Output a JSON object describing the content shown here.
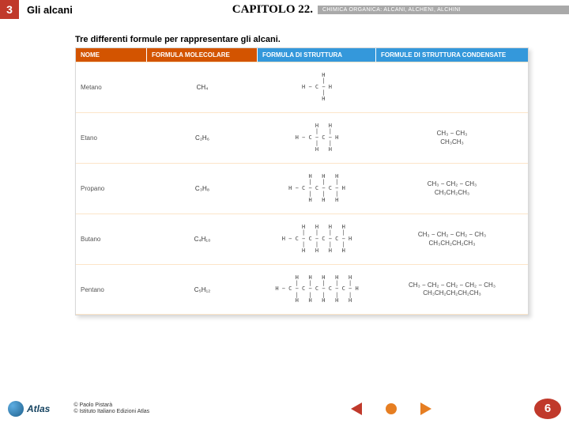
{
  "header": {
    "num": "3",
    "title": "Gli alcani",
    "chapter": "CAPITOLO 22.",
    "banner": "CHIMICA ORGANICA: ALCANI, ALCHENI, ALCHINI"
  },
  "subtitle": "Tre differenti formule per rappresentare gli alcani.",
  "thead": {
    "c1": "NOME",
    "c2": "FORMULA MOLECOLARE",
    "c3": "FORMULA DI STRUTTURA",
    "c4": "FORMULE DI STRUTTURA CONDENSATE"
  },
  "rows": [
    {
      "name": "Metano",
      "mol": "CH₄",
      "struct": "    H\n    |\nH − C − H\n    |\n    H",
      "cond1": "",
      "cond2": ""
    },
    {
      "name": "Etano",
      "mol": "C₂H₆",
      "struct": "    H   H\n    |   |\nH − C − C − H\n    |   |\n    H   H",
      "cond1": "CH₃ − CH₃",
      "cond2": "CH₃CH₃"
    },
    {
      "name": "Propano",
      "mol": "C₃H₈",
      "struct": "    H   H   H\n    |   |   |\nH − C − C − C − H\n    |   |   |\n    H   H   H",
      "cond1": "CH₃ − CH₂ − CH₃",
      "cond2": "CH₃CH₂CH₃"
    },
    {
      "name": "Butano",
      "mol": "C₄H₁₀",
      "struct": "    H   H   H   H\n    |   |   |   |\nH − C − C − C − C − H\n    |   |   |   |\n    H   H   H   H",
      "cond1": "CH₃ − CH₂ − CH₂ − CH₃",
      "cond2": "CH₃CH₂CH₂CH₃"
    },
    {
      "name": "Pentano",
      "mol": "C₅H₁₂",
      "struct": "    H   H   H   H   H\n    |   |   |   |   |\nH − C − C − C − C − C − H\n    |   |   |   |   |\n    H   H   H   H   H",
      "cond1": "CH₃ − CH₂ − CH₂ − CH₂ − CH₃",
      "cond2": "CH₃CH₂CH₂CH₂CH₃"
    }
  ],
  "footer": {
    "logo": "Atlas",
    "copy1": "© Paolo Pistarà",
    "copy2": "© Istituto Italiano Edizioni Atlas",
    "page": "6"
  }
}
